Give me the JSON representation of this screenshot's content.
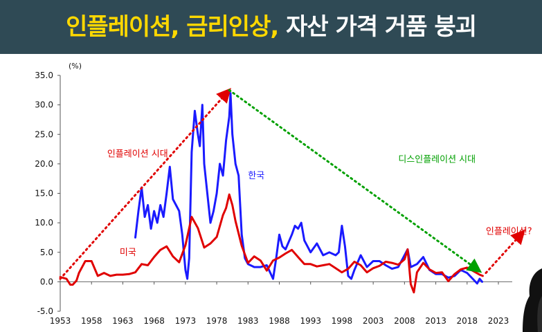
{
  "banner": {
    "part1": "인플레이션,",
    "part2": "금리인상,",
    "part3": "자산 가격 거품 붕괴",
    "highlight_color": "#ffd800",
    "text_color": "#ffffff",
    "background": "#2f4a55"
  },
  "chart_data": {
    "type": "line",
    "unit_label": "(%)",
    "xlim": [
      1953,
      2023
    ],
    "ylim": [
      -5,
      35
    ],
    "x_ticks": [
      "1953",
      "1958",
      "1963",
      "1968",
      "1973",
      "1978",
      "1983",
      "1988",
      "1993",
      "1998",
      "2003",
      "2008",
      "2013",
      "2018",
      "2023"
    ],
    "y_ticks": [
      "35.0",
      "30.0",
      "25.0",
      "20.0",
      "15.0",
      "10.0",
      "5.0",
      "0.0",
      "-5.0"
    ],
    "grid": false,
    "legend": "none",
    "series": [
      {
        "name": "한국",
        "color": "#1a1aff",
        "points": [
          [
            1965,
            7.5
          ],
          [
            1965.5,
            12
          ],
          [
            1966,
            16
          ],
          [
            1966.5,
            11
          ],
          [
            1967,
            13
          ],
          [
            1967.5,
            9
          ],
          [
            1968,
            12
          ],
          [
            1968.5,
            10
          ],
          [
            1969,
            13
          ],
          [
            1969.5,
            11
          ],
          [
            1970,
            15
          ],
          [
            1970.5,
            19.5
          ],
          [
            1971,
            14
          ],
          [
            1971.5,
            13
          ],
          [
            1972,
            12
          ],
          [
            1972.5,
            8
          ],
          [
            1973,
            2
          ],
          [
            1973.3,
            0.5
          ],
          [
            1973.6,
            4
          ],
          [
            1974,
            22
          ],
          [
            1974.5,
            29
          ],
          [
            1975,
            25
          ],
          [
            1975.3,
            23
          ],
          [
            1975.7,
            30
          ],
          [
            1976,
            20
          ],
          [
            1976.5,
            15
          ],
          [
            1977,
            10
          ],
          [
            1977.5,
            12
          ],
          [
            1978,
            15
          ],
          [
            1978.5,
            20
          ],
          [
            1979,
            18
          ],
          [
            1979.5,
            24
          ],
          [
            1980,
            28
          ],
          [
            1980.2,
            32
          ],
          [
            1980.5,
            25
          ],
          [
            1981,
            20
          ],
          [
            1981.5,
            18
          ],
          [
            1982,
            8
          ],
          [
            1982.5,
            4
          ],
          [
            1983,
            3
          ],
          [
            1984,
            2.5
          ],
          [
            1985,
            2.5
          ],
          [
            1986,
            2.8
          ],
          [
            1987,
            0.5
          ],
          [
            1987.5,
            4
          ],
          [
            1988,
            8
          ],
          [
            1988.5,
            6
          ],
          [
            1989,
            5.5
          ],
          [
            1990,
            8
          ],
          [
            1990.5,
            9.5
          ],
          [
            1991,
            9
          ],
          [
            1991.5,
            10
          ],
          [
            1992,
            7
          ],
          [
            1992.5,
            6
          ],
          [
            1993,
            5
          ],
          [
            1994,
            6.5
          ],
          [
            1995,
            4.5
          ],
          [
            1996,
            5
          ],
          [
            1997,
            4.5
          ],
          [
            1997.5,
            5
          ],
          [
            1998,
            9.5
          ],
          [
            1998.5,
            6
          ],
          [
            1999,
            1
          ],
          [
            1999.5,
            0.5
          ],
          [
            2000,
            2
          ],
          [
            2001,
            4.5
          ],
          [
            2002,
            2.5
          ],
          [
            2003,
            3.5
          ],
          [
            2004,
            3.5
          ],
          [
            2005,
            2.8
          ],
          [
            2006,
            2.2
          ],
          [
            2007,
            2.5
          ],
          [
            2008,
            4.5
          ],
          [
            2008.5,
            5.5
          ],
          [
            2009,
            2.5
          ],
          [
            2010,
            3
          ],
          [
            2011,
            4.2
          ],
          [
            2012,
            2
          ],
          [
            2013,
            1.3
          ],
          [
            2014,
            1.3
          ],
          [
            2015,
            0.7
          ],
          [
            2016,
            1
          ],
          [
            2017,
            2
          ],
          [
            2018,
            1.5
          ],
          [
            2019,
            0.4
          ],
          [
            2019.6,
            -0.3
          ],
          [
            2020,
            0.5
          ],
          [
            2020.4,
            0
          ]
        ]
      },
      {
        "name": "미국",
        "color": "#e00000",
        "points": [
          [
            1953,
            0.8
          ],
          [
            1954,
            0.5
          ],
          [
            1954.6,
            -0.5
          ],
          [
            1955,
            -0.5
          ],
          [
            1955.6,
            0.2
          ],
          [
            1956,
            1.5
          ],
          [
            1957,
            3.5
          ],
          [
            1958,
            3.5
          ],
          [
            1959,
            1
          ],
          [
            1960,
            1.5
          ],
          [
            1961,
            1
          ],
          [
            1962,
            1.2
          ],
          [
            1963,
            1.2
          ],
          [
            1964,
            1.3
          ],
          [
            1965,
            1.6
          ],
          [
            1966,
            3
          ],
          [
            1967,
            2.8
          ],
          [
            1968,
            4.2
          ],
          [
            1969,
            5.4
          ],
          [
            1970,
            6
          ],
          [
            1971,
            4.3
          ],
          [
            1972,
            3.3
          ],
          [
            1973,
            6.2
          ],
          [
            1974,
            11
          ],
          [
            1975,
            9.1
          ],
          [
            1976,
            5.8
          ],
          [
            1977,
            6.5
          ],
          [
            1978,
            7.6
          ],
          [
            1979,
            11.3
          ],
          [
            1979.5,
            12.5
          ],
          [
            1980,
            14.8
          ],
          [
            1980.5,
            13
          ],
          [
            1981,
            10.3
          ],
          [
            1982,
            6.1
          ],
          [
            1983,
            3.2
          ],
          [
            1984,
            4.3
          ],
          [
            1985,
            3.6
          ],
          [
            1986,
            1.9
          ],
          [
            1987,
            3.6
          ],
          [
            1988,
            4.1
          ],
          [
            1989,
            4.8
          ],
          [
            1990,
            5.4
          ],
          [
            1991,
            4.2
          ],
          [
            1992,
            3
          ],
          [
            1993,
            3
          ],
          [
            1994,
            2.6
          ],
          [
            1995,
            2.8
          ],
          [
            1996,
            3
          ],
          [
            1997,
            2.3
          ],
          [
            1998,
            1.6
          ],
          [
            1999,
            2.2
          ],
          [
            2000,
            3.4
          ],
          [
            2001,
            2.8
          ],
          [
            2002,
            1.6
          ],
          [
            2003,
            2.3
          ],
          [
            2004,
            2.7
          ],
          [
            2005,
            3.4
          ],
          [
            2006,
            3.2
          ],
          [
            2007,
            2.9
          ],
          [
            2008,
            3.8
          ],
          [
            2008.5,
            5.5
          ],
          [
            2009,
            -0.4
          ],
          [
            2009.5,
            -1.8
          ],
          [
            2010,
            1.6
          ],
          [
            2011,
            3.2
          ],
          [
            2012,
            2.1
          ],
          [
            2013,
            1.5
          ],
          [
            2014,
            1.6
          ],
          [
            2015,
            0.1
          ],
          [
            2016,
            1.3
          ],
          [
            2017,
            2.1
          ],
          [
            2018,
            2.4
          ],
          [
            2019,
            1.8
          ],
          [
            2020,
            1.2
          ],
          [
            2020.5,
            1
          ]
        ]
      }
    ],
    "annotations": [
      {
        "text": "인플레이션 시대",
        "color": "#e00000",
        "x": 1960.5,
        "y": 21.2
      },
      {
        "text": "한국",
        "color": "#1a1aff",
        "x": 1983,
        "y": 17.5
      },
      {
        "text": "디스인플레이션 시대",
        "color": "#00a000",
        "x": 2007,
        "y": 20.3
      },
      {
        "text": "미국",
        "color": "#e00000",
        "x": 1962.5,
        "y": 4.5
      },
      {
        "text": "인플레이션?",
        "color": "#e00000",
        "x": 2021,
        "y": 8.1
      }
    ],
    "trend_arrows": [
      {
        "color": "#e00000",
        "from": [
          1953,
          0.5
        ],
        "to": [
          1980,
          32.5
        ]
      },
      {
        "color": "#00a000",
        "from": [
          1980,
          32.5
        ],
        "to": [
          2020,
          1.8
        ]
      },
      {
        "color": "#e00000",
        "from": [
          2021,
          1.5
        ],
        "to": [
          2027,
          8.5
        ]
      }
    ]
  }
}
